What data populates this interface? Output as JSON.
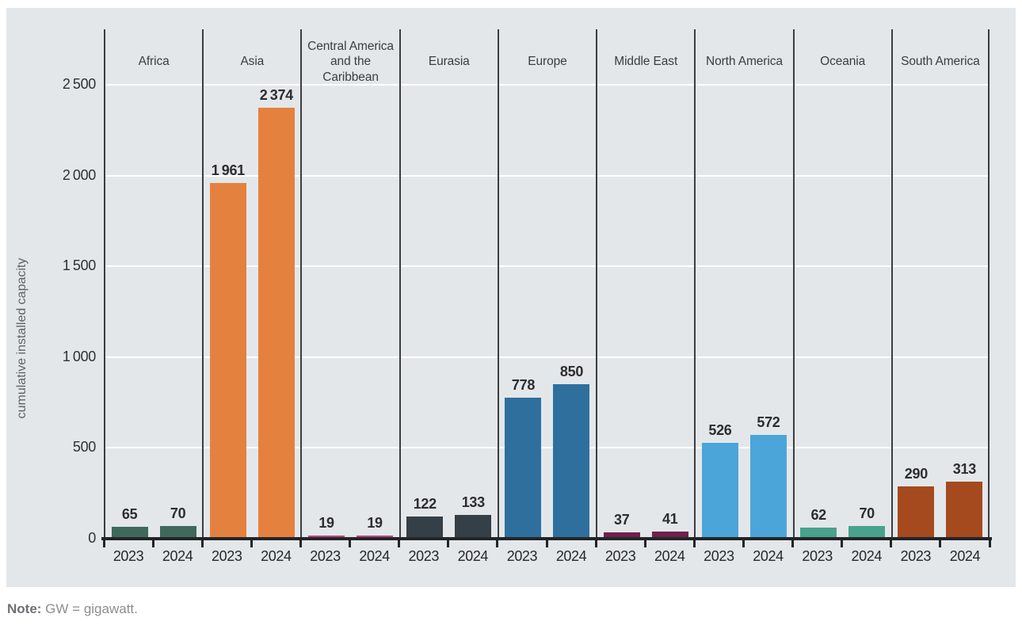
{
  "figure": {
    "note_label": "Note:",
    "note_text": " GW = gigawatt."
  },
  "chart_data": {
    "type": "bar",
    "title": "",
    "ylabel": "cumulative installed capacity",
    "xlabel": "",
    "unit": "GW",
    "ylim": [
      0,
      2500
    ],
    "yticks": [
      0,
      500,
      1000,
      1500,
      2000,
      2500
    ],
    "grid": "horizontal white gridlines at yticks",
    "legend_position": "none",
    "categories": [
      "Africa",
      "Asia",
      "Central America and the Caribbean",
      "Eurasia",
      "Europe",
      "Middle East",
      "North America",
      "Oceania",
      "South America"
    ],
    "x_sublabels": [
      "2023",
      "2024"
    ],
    "series": [
      {
        "name": "2023",
        "values": [
          65,
          1961,
          19,
          122,
          778,
          37,
          526,
          62,
          290
        ]
      },
      {
        "name": "2024",
        "values": [
          70,
          2374,
          19,
          133,
          850,
          41,
          572,
          70,
          313
        ]
      }
    ],
    "bar_colors_by_category": [
      "#3f695b",
      "#e5813e",
      "#bd4382",
      "#353f47",
      "#2e6f9e",
      "#71204d",
      "#4ba5d9",
      "#49a28d",
      "#a5491e"
    ],
    "background_color": "#e3e7e9",
    "gridline_color": "#ffffff",
    "axis_color": "#222527",
    "divider_color": "#3a3e41",
    "note": "Note: GW = gigawatt."
  }
}
